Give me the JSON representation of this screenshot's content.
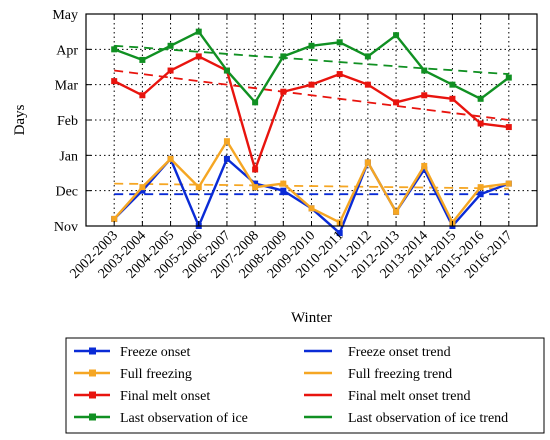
{
  "chart_data": {
    "type": "line",
    "xlabel": "Winter",
    "ylabel": "Days",
    "categories": [
      "2002-2003",
      "2003-2004",
      "2004-2005",
      "2005-2006",
      "2006-2007",
      "2007-2008",
      "2008-2009",
      "2009-2010",
      "2010-2011",
      "2011-2012",
      "2012-2013",
      "2013-2014",
      "2014-2015",
      "2015-2016",
      "2016-2017"
    ],
    "y_ticks": [
      "Nov",
      "Dec",
      "Jan",
      "Feb",
      "Mar",
      "Apr",
      "May"
    ],
    "ylim": [
      0,
      6
    ],
    "y_unit_note": "months after 1 Nov (Nov=0 ... May=6)",
    "grid": true,
    "legend_position": "bottom",
    "series": [
      {
        "name": "Freeze onset",
        "color": "#0a2bd6",
        "style": "solid-markers",
        "values": [
          0.2,
          1.0,
          1.9,
          0.0,
          1.9,
          1.2,
          1.0,
          0.5,
          -0.2,
          1.8,
          0.4,
          1.6,
          -0.0,
          0.9,
          1.2
        ]
      },
      {
        "name": "Full freezing",
        "color": "#f5a623",
        "style": "solid-markers",
        "values": [
          0.2,
          1.1,
          1.9,
          1.1,
          2.4,
          1.1,
          1.2,
          0.5,
          0.1,
          1.8,
          0.4,
          1.7,
          0.1,
          1.1,
          1.2
        ]
      },
      {
        "name": "Final melt onset",
        "color": "#e8140e",
        "style": "solid-markers",
        "values": [
          4.1,
          3.7,
          4.4,
          4.8,
          4.4,
          1.6,
          3.8,
          4.0,
          4.3,
          4.0,
          3.5,
          3.7,
          3.6,
          2.9,
          2.8
        ]
      },
      {
        "name": "Last observation of ice",
        "color": "#109022",
        "style": "solid-markers",
        "values": [
          5.0,
          4.7,
          5.1,
          5.5,
          4.4,
          3.5,
          4.8,
          5.1,
          5.2,
          4.8,
          5.4,
          4.4,
          4.0,
          3.6,
          4.2
        ]
      },
      {
        "name": "Freeze onset trend",
        "color": "#0a2bd6",
        "style": "dashed",
        "values": [
          0.9,
          0.9,
          0.9,
          0.9,
          0.9,
          0.9,
          0.9,
          0.9,
          0.9,
          0.9,
          0.9,
          0.9,
          0.9,
          0.9,
          0.9
        ]
      },
      {
        "name": "Full freezing trend",
        "color": "#f5a623",
        "style": "dashed",
        "values": [
          1.2,
          1.19,
          1.18,
          1.17,
          1.16,
          1.15,
          1.14,
          1.13,
          1.12,
          1.11,
          1.1,
          1.09,
          1.08,
          1.07,
          1.06
        ]
      },
      {
        "name": "Final melt onset trend",
        "color": "#e8140e",
        "style": "dashed",
        "values": [
          4.4,
          4.3,
          4.2,
          4.1,
          4.0,
          3.9,
          3.8,
          3.7,
          3.6,
          3.5,
          3.4,
          3.3,
          3.2,
          3.1,
          3.0
        ]
      },
      {
        "name": "Last observation of ice trend",
        "color": "#109022",
        "style": "dashed",
        "values": [
          5.1,
          5.05,
          4.99,
          4.93,
          4.87,
          4.81,
          4.76,
          4.7,
          4.64,
          4.58,
          4.52,
          4.46,
          4.41,
          4.35,
          4.3
        ]
      }
    ],
    "legend_entries": [
      {
        "label": "Freeze onset",
        "color": "#0a2bd6",
        "kind": "line-marker"
      },
      {
        "label": "Freeze onset trend",
        "color": "#0a2bd6",
        "kind": "dash"
      },
      {
        "label": "Full freezing",
        "color": "#f5a623",
        "kind": "line-marker"
      },
      {
        "label": "Full freezing trend",
        "color": "#f5a623",
        "kind": "dash"
      },
      {
        "label": "Final melt onset",
        "color": "#e8140e",
        "kind": "line-marker"
      },
      {
        "label": "Final melt onset trend",
        "color": "#e8140e",
        "kind": "dash"
      },
      {
        "label": "Last observation of ice",
        "color": "#109022",
        "kind": "line-marker"
      },
      {
        "label": "Last observation of ice trend",
        "color": "#109022",
        "kind": "dash"
      }
    ]
  }
}
